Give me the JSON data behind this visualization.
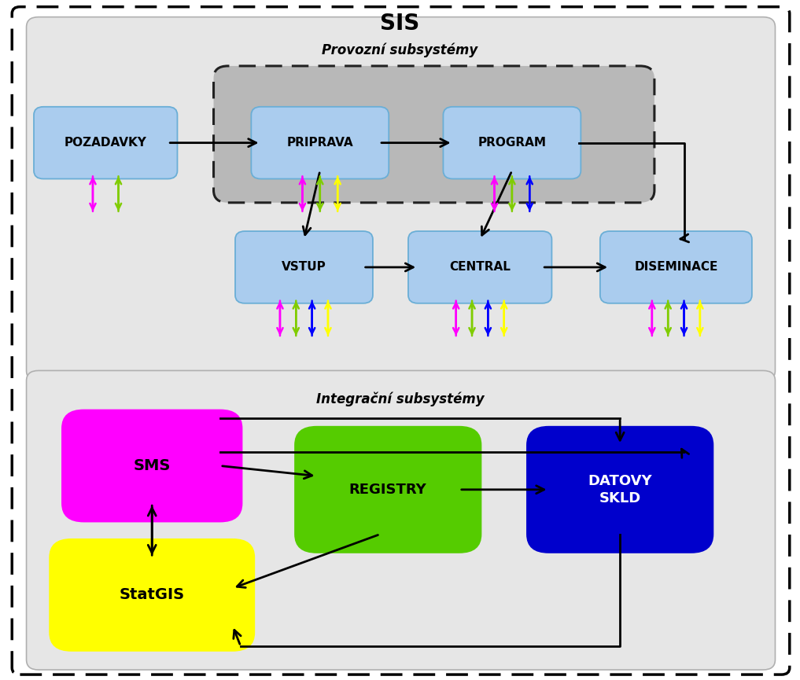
{
  "title": "SIS",
  "provozni_label": "Provozní subsystémy",
  "integracni_label": "Integrační subsystémy",
  "light_blue": "#aad4f5",
  "magenta": "#ff00ff",
  "lime": "#80cc00",
  "blue_arr": "#0000ff",
  "yellow": "#ffff00",
  "figsize": [
    10.17,
    8.65
  ],
  "dpi": 100
}
